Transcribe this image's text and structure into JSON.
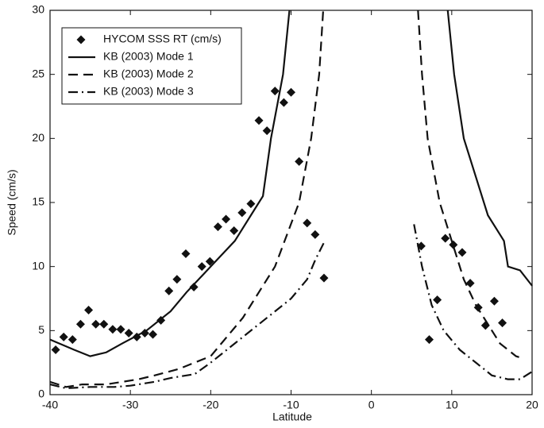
{
  "chart_data": {
    "type": "line",
    "xlabel": "Latitude",
    "ylabel": "Speed (cm/s)",
    "xlim": [
      -40,
      20
    ],
    "ylim": [
      0,
      30
    ],
    "xticks": [
      -40,
      -30,
      -20,
      -10,
      0,
      10,
      20
    ],
    "yticks": [
      0,
      5,
      10,
      15,
      20,
      25,
      30
    ],
    "legend": "upper left",
    "series": [
      {
        "name": "HYCOM SSS RT (cm/s)",
        "kind": "scatter",
        "marker": "diamond",
        "color": "#111111",
        "x": [
          -39.3,
          -38.3,
          -37.2,
          -36.2,
          -35.2,
          -34.3,
          -33.3,
          -32.2,
          -31.2,
          -30.2,
          -29.2,
          -28.2,
          -27.2,
          -26.2,
          -25.2,
          -24.2,
          -23.1,
          -22.1,
          -21.1,
          -20.1,
          -19.1,
          -18.1,
          -17.1,
          -16.1,
          -15.0,
          -14.0,
          -13.0,
          -12.0,
          -10.9,
          -10.0,
          -9.0,
          -8.0,
          -7.0,
          -5.9,
          6.2,
          7.2,
          8.2,
          9.2,
          10.2,
          11.3,
          12.3,
          13.3,
          14.2,
          15.3,
          16.3
        ],
        "y": [
          3.5,
          4.5,
          4.3,
          5.5,
          6.6,
          5.5,
          5.5,
          5.1,
          5.1,
          4.8,
          4.5,
          4.8,
          4.7,
          5.8,
          8.1,
          9.0,
          11.0,
          8.4,
          10.0,
          10.4,
          13.1,
          13.7,
          12.8,
          14.2,
          14.9,
          21.4,
          20.6,
          23.7,
          22.8,
          23.6,
          18.2,
          13.4,
          12.5,
          9.1,
          11.6,
          4.3,
          7.4,
          12.2,
          11.7,
          11.1,
          8.7,
          6.8,
          5.4,
          7.3,
          5.6
        ]
      },
      {
        "name": "KB (2003) Mode 1",
        "kind": "line",
        "line_style": "solid",
        "color": "#111111",
        "x": [
          -40,
          -37,
          -35,
          -33,
          -31,
          -28,
          -25,
          -23,
          -20,
          -17,
          -15,
          -13.5,
          -12.5,
          -11,
          -10.2,
          null,
          9.5,
          10.3,
          11.5,
          13,
          14.5,
          16,
          16.5,
          17,
          18.5,
          20
        ],
        "y": [
          4.3,
          3.5,
          3.0,
          3.3,
          4.0,
          5.0,
          6.5,
          8.0,
          10.0,
          12.0,
          14.0,
          15.5,
          20.0,
          25.0,
          30.0,
          null,
          30.0,
          25.0,
          20.0,
          17.0,
          14.0,
          12.5,
          12.0,
          10.0,
          9.7,
          8.5
        ]
      },
      {
        "name": "KB (2003) Mode 2",
        "kind": "line",
        "line_style": "dashed",
        "color": "#111111",
        "x": [
          -40,
          -38,
          -36,
          -33,
          -31,
          -29,
          -27,
          -24,
          -22,
          -20,
          -18,
          -16,
          -14,
          -12,
          -10.5,
          -9,
          -7.5,
          -6.5,
          -6,
          null,
          5.8,
          6.3,
          7,
          8.5,
          10,
          11.5,
          13,
          14.5,
          16,
          18,
          18.5
        ],
        "y": [
          1.0,
          0.6,
          0.8,
          0.8,
          1.0,
          1.2,
          1.5,
          2.0,
          2.5,
          3.0,
          4.5,
          6.0,
          8.0,
          10.0,
          12.5,
          15.0,
          20.0,
          25.0,
          30.0,
          null,
          30.0,
          25.0,
          20.0,
          15.0,
          12.0,
          9.0,
          7.0,
          5.5,
          4.0,
          3.0,
          2.9
        ]
      },
      {
        "name": "KB (2003) Mode 3",
        "kind": "line",
        "line_style": "dashdot",
        "color": "#111111",
        "x": [
          -40,
          -38,
          -35,
          -32,
          -30,
          -27,
          -25,
          -22,
          -20,
          -18,
          -16,
          -14,
          -12,
          -10,
          -8,
          -7,
          -5.8,
          null,
          5.3,
          6.3,
          7.5,
          9,
          11,
          13,
          15,
          17,
          18.5,
          20
        ],
        "y": [
          0.8,
          0.5,
          0.6,
          0.6,
          0.7,
          1.0,
          1.3,
          1.6,
          2.5,
          3.5,
          4.5,
          5.5,
          6.5,
          7.5,
          9.0,
          10.5,
          12.0,
          null,
          13.3,
          10.0,
          7.0,
          5.0,
          3.5,
          2.5,
          1.5,
          1.2,
          1.2,
          1.8
        ]
      }
    ]
  }
}
